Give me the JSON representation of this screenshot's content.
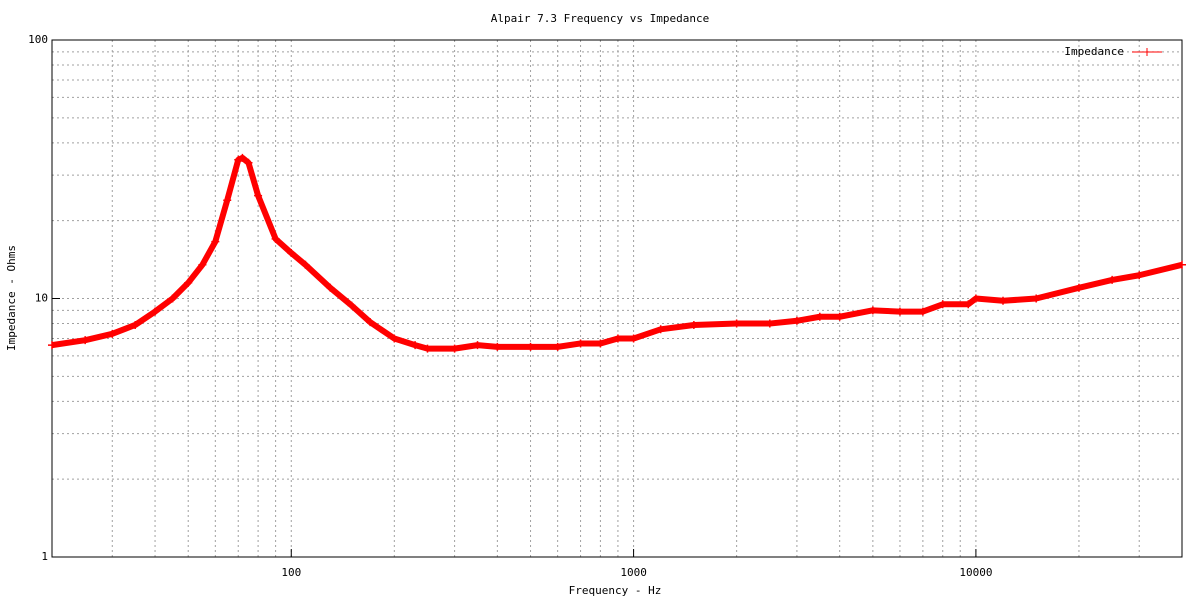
{
  "chart_data": {
    "type": "line",
    "title": "Alpair 7.3 Frequency vs Impedance",
    "xlabel": "Frequency - Hz",
    "ylabel": "Impedance - Ohms",
    "xscale": "log",
    "yscale": "log",
    "grid": true,
    "legend": "upper right",
    "xlim": [
      20,
      40000
    ],
    "ylim": [
      1,
      100
    ],
    "xticks": [
      100,
      1000,
      10000
    ],
    "yticks": [
      1,
      10,
      100
    ],
    "x": [
      20,
      25,
      30,
      35,
      40,
      45,
      50,
      55,
      60,
      65,
      70,
      72,
      75,
      80,
      90,
      100,
      110,
      130,
      150,
      170,
      200,
      230,
      250,
      300,
      350,
      400,
      500,
      600,
      700,
      800,
      900,
      1000,
      1200,
      1500,
      2000,
      2500,
      3000,
      3500,
      4000,
      5000,
      6000,
      7000,
      8000,
      9500,
      10000,
      12000,
      15000,
      20000,
      25000,
      30000,
      40000
    ],
    "series": [
      {
        "name": "Impedance",
        "color": "#ff0000",
        "values": [
          6.6,
          6.9,
          7.3,
          7.9,
          8.9,
          10,
          11.5,
          13.5,
          16.6,
          24,
          34.4,
          35,
          33.5,
          25,
          17,
          15,
          13.5,
          11,
          9.4,
          8.1,
          7.0,
          6.6,
          6.4,
          6.4,
          6.6,
          6.5,
          6.5,
          6.5,
          6.7,
          6.7,
          7.0,
          7.0,
          7.6,
          7.9,
          8.0,
          8.0,
          8.2,
          8.5,
          8.5,
          9.0,
          8.9,
          8.9,
          9.5,
          9.5,
          10,
          9.8,
          10,
          11,
          11.8,
          12.3,
          13.5
        ]
      }
    ]
  }
}
